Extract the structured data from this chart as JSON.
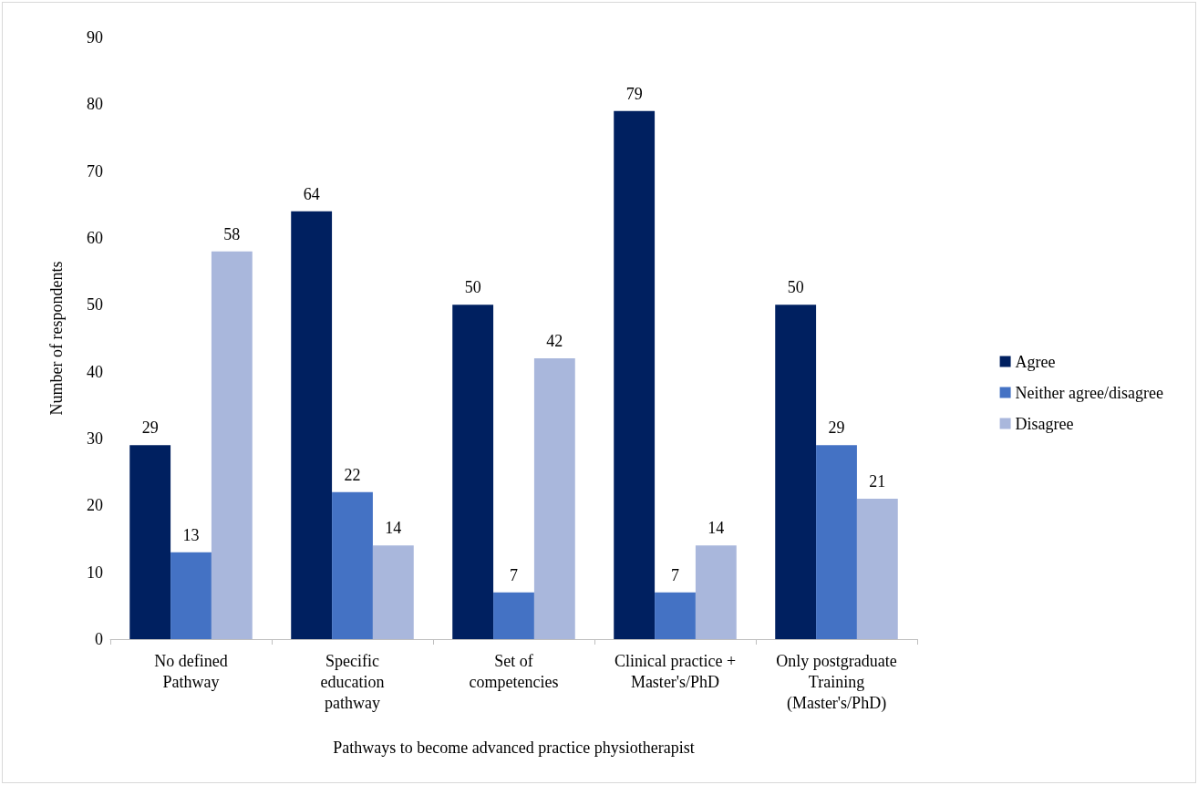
{
  "chart_data": {
    "type": "bar",
    "xlabel": "Pathways to become advanced practice physiotherapist",
    "ylabel": "Number of respondents",
    "categories": [
      "No defined\nPathway",
      "Specific\neducation\npathway",
      "Set of\ncompetencies",
      "Clinical practice +\nMaster's/PhD",
      "Only postgraduate\nTraining\n(Master's/PhD)"
    ],
    "series": [
      {
        "name": "Agree",
        "color": "#002060",
        "values": [
          29,
          64,
          50,
          79,
          50
        ]
      },
      {
        "name": "Neither agree/disagree",
        "color": "#4472c4",
        "values": [
          13,
          22,
          7,
          7,
          29
        ]
      },
      {
        "name": "Disagree",
        "color": "#a9b7dc",
        "values": [
          58,
          14,
          42,
          14,
          21
        ]
      }
    ],
    "ylim": [
      0,
      90
    ],
    "yticks": [
      0,
      10,
      20,
      30,
      40,
      50,
      60,
      70,
      80,
      90
    ],
    "grid": false,
    "legend": "right",
    "data_labels": true
  }
}
